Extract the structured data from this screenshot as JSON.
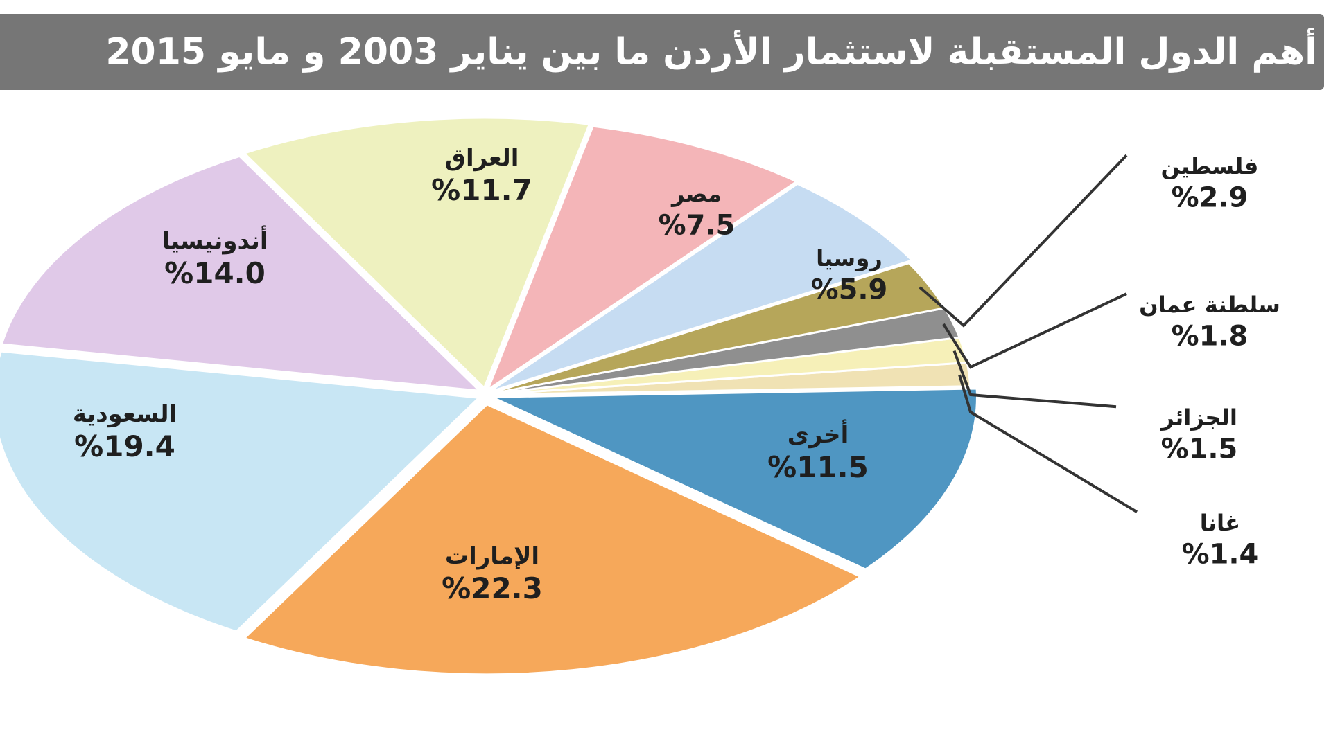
{
  "title": "أهم الدول المستقبلة لاستثمار الأردن ما بين يناير 2003 و مايو 2015",
  "chart_data": {
    "type": "pie",
    "title": "أهم الدول المستقبلة لاستثمار الأردن ما بين يناير 2003 و مايو 2015",
    "slices": [
      {
        "label": "الإمارات",
        "value_text": "%22.3",
        "value": 22.3,
        "color": "#f6a85a"
      },
      {
        "label": "أخرى",
        "value_text": "%11.5",
        "value": 11.5,
        "color": "#4f96c2"
      },
      {
        "label": "غانا",
        "value_text": "%1.4",
        "value": 1.4,
        "color": "#f0e2b4"
      },
      {
        "label": "الجزائر",
        "value_text": "%1.5",
        "value": 1.5,
        "color": "#f6f0b8"
      },
      {
        "label": "سلطنة عمان",
        "value_text": "%1.8",
        "value": 1.8,
        "color": "#8f8f8f"
      },
      {
        "label": "فلسطين",
        "value_text": "%2.9",
        "value": 2.9,
        "color": "#b6a65a"
      },
      {
        "label": "روسيا",
        "value_text": "%5.9",
        "value": 5.9,
        "color": "#c6dcf2"
      },
      {
        "label": "مصر",
        "value_text": "%7.5",
        "value": 7.5,
        "color": "#f4b5b8"
      },
      {
        "label": "العراق",
        "value_text": "%11.7",
        "value": 11.7,
        "color": "#eef1bf"
      },
      {
        "label": "أندونيسيا",
        "value_text": "%14.0",
        "value": 14.0,
        "color": "#e0c9e8"
      },
      {
        "label": "السعودية",
        "value_text": "%19.4",
        "value": 19.4,
        "color": "#c8e6f4"
      }
    ]
  }
}
